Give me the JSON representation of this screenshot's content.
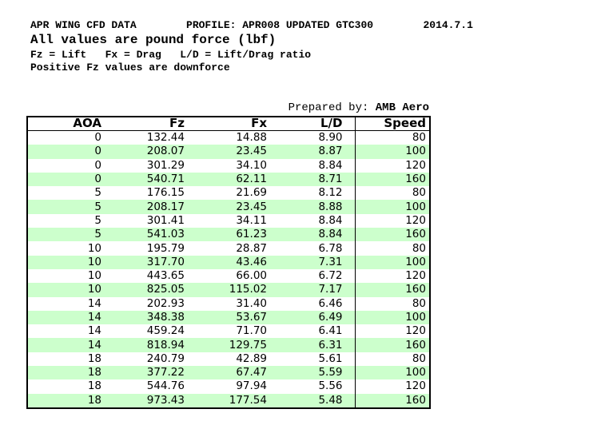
{
  "header": {
    "title_line": "APR WING CFD DATA        PROFILE: APR008 UPDATED GTC300        2014.7.1",
    "subtitle": "All values are pound force (lbf)",
    "legend_line": "Fz = Lift   Fx = Drag   L/D = Lift/Drag ratio",
    "note_line": "Positive Fz values are downforce",
    "prepared_by_label": "Prepared by: ",
    "prepared_by_value": "AMB Aero"
  },
  "table": {
    "headers": [
      "AOA",
      "Fz",
      "Fx",
      "L/D",
      "Speed"
    ],
    "rows": [
      [
        "0",
        "132.44",
        "14.88",
        "8.90",
        "80"
      ],
      [
        "0",
        "208.07",
        "23.45",
        "8.87",
        "100"
      ],
      [
        "0",
        "301.29",
        "34.10",
        "8.84",
        "120"
      ],
      [
        "0",
        "540.71",
        "62.11",
        "8.71",
        "160"
      ],
      [
        "5",
        "176.15",
        "21.69",
        "8.12",
        "80"
      ],
      [
        "5",
        "208.17",
        "23.45",
        "8.88",
        "100"
      ],
      [
        "5",
        "301.41",
        "34.11",
        "8.84",
        "120"
      ],
      [
        "5",
        "541.03",
        "61.23",
        "8.84",
        "160"
      ],
      [
        "10",
        "195.79",
        "28.87",
        "6.78",
        "80"
      ],
      [
        "10",
        "317.70",
        "43.46",
        "7.31",
        "100"
      ],
      [
        "10",
        "443.65",
        "66.00",
        "6.72",
        "120"
      ],
      [
        "10",
        "825.05",
        "115.02",
        "7.17",
        "160"
      ],
      [
        "14",
        "202.93",
        "31.40",
        "6.46",
        "80"
      ],
      [
        "14",
        "348.38",
        "53.67",
        "6.49",
        "100"
      ],
      [
        "14",
        "459.24",
        "71.70",
        "6.41",
        "120"
      ],
      [
        "14",
        "818.94",
        "129.75",
        "6.31",
        "160"
      ],
      [
        "18",
        "240.79",
        "42.89",
        "5.61",
        "80"
      ],
      [
        "18",
        "377.22",
        "67.47",
        "5.59",
        "100"
      ],
      [
        "18",
        "544.76",
        "97.94",
        "5.56",
        "120"
      ],
      [
        "18",
        "973.43",
        "177.54",
        "5.48",
        "160"
      ]
    ]
  },
  "colors": {
    "stripe_green": "#ccffcc",
    "border": "#000000",
    "text": "#000000"
  }
}
